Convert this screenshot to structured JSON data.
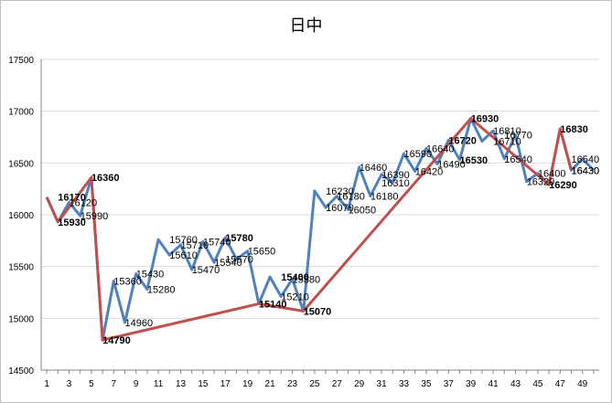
{
  "chart_data": {
    "type": "line",
    "title": "日中",
    "xlabel": "",
    "ylabel": "",
    "ylim": [
      14500,
      17500
    ],
    "yticks": [
      14500,
      15000,
      15500,
      16000,
      16500,
      17000,
      17500
    ],
    "xtick_labels": [
      "1",
      "3",
      "5",
      "7",
      "9",
      "11",
      "13",
      "15",
      "17",
      "19",
      "21",
      "23",
      "25",
      "27",
      "29",
      "31",
      "33",
      "35",
      "37",
      "39",
      "41",
      "43",
      "45",
      "47",
      "49"
    ],
    "grid": true,
    "legend": "none",
    "colors": {
      "primary": "#4f81bd",
      "swing": "#c0504d",
      "grid": "#d9d9d9"
    },
    "series": [
      {
        "values": [
          16170,
          15930,
          16120,
          15990,
          16360,
          14790,
          15360,
          14960,
          15430,
          15280,
          15760,
          15610,
          15710,
          15470,
          15740,
          15540,
          15780,
          15570,
          15650,
          15140,
          15400,
          15210,
          15380,
          15070,
          16230,
          16070,
          16180,
          16050,
          16460,
          16180,
          16390,
          16310,
          16590,
          16420,
          16640,
          16490,
          16720,
          16530,
          16930,
          16710,
          16810,
          16540,
          16770,
          16320,
          16400,
          16290,
          16830,
          16430,
          16540,
          16430
        ]
      },
      {
        "points": [
          [
            1,
            16170
          ],
          [
            2,
            15930
          ],
          [
            5,
            16360
          ],
          [
            6,
            14790
          ],
          [
            20,
            15140
          ],
          [
            24,
            15070
          ],
          [
            39,
            16930
          ],
          [
            46,
            16290
          ],
          [
            47,
            16830
          ],
          [
            48,
            16430
          ]
        ]
      }
    ],
    "annotations": [
      {
        "x": 2,
        "y": 16170,
        "text": "16170",
        "bold": true
      },
      {
        "x": 2,
        "y": 15930,
        "text": "15930",
        "bold": true
      },
      {
        "x": 3,
        "y": 16120,
        "text": "16120",
        "bold": false
      },
      {
        "x": 4,
        "y": 15990,
        "text": "15990",
        "bold": false
      },
      {
        "x": 5,
        "y": 16360,
        "text": "16360",
        "bold": true
      },
      {
        "x": 6,
        "y": 14790,
        "text": "14790",
        "bold": true
      },
      {
        "x": 7,
        "y": 15360,
        "text": "15360",
        "bold": false
      },
      {
        "x": 8,
        "y": 14960,
        "text": "14960",
        "bold": false
      },
      {
        "x": 9,
        "y": 15430,
        "text": "15430",
        "bold": false
      },
      {
        "x": 10,
        "y": 15280,
        "text": "15280",
        "bold": false
      },
      {
        "x": 12,
        "y": 15760,
        "text": "15760",
        "bold": false
      },
      {
        "x": 12,
        "y": 15610,
        "text": "15610",
        "bold": false
      },
      {
        "x": 13,
        "y": 15710,
        "text": "15710",
        "bold": false
      },
      {
        "x": 14,
        "y": 15470,
        "text": "15470",
        "bold": false
      },
      {
        "x": 15,
        "y": 15740,
        "text": "15740",
        "bold": false
      },
      {
        "x": 16,
        "y": 15540,
        "text": "15540",
        "bold": false
      },
      {
        "x": 17,
        "y": 15780,
        "text": "15780",
        "bold": true
      },
      {
        "x": 17,
        "y": 15570,
        "text": "15570",
        "bold": false
      },
      {
        "x": 19,
        "y": 15650,
        "text": "15650",
        "bold": false
      },
      {
        "x": 20,
        "y": 15140,
        "text": "15140",
        "bold": true
      },
      {
        "x": 22,
        "y": 15400,
        "text": "15400",
        "bold": true
      },
      {
        "x": 22,
        "y": 15210,
        "text": "15210",
        "bold": false
      },
      {
        "x": 23,
        "y": 15380,
        "text": "15380",
        "bold": false
      },
      {
        "x": 24,
        "y": 15070,
        "text": "15070",
        "bold": true
      },
      {
        "x": 26,
        "y": 16230,
        "text": "16230",
        "bold": false
      },
      {
        "x": 26,
        "y": 16070,
        "text": "16070",
        "bold": false
      },
      {
        "x": 27,
        "y": 16180,
        "text": "16180",
        "bold": false
      },
      {
        "x": 28,
        "y": 16050,
        "text": "16050",
        "bold": false
      },
      {
        "x": 29,
        "y": 16460,
        "text": "16460",
        "bold": false
      },
      {
        "x": 30,
        "y": 16180,
        "text": "16180",
        "bold": false
      },
      {
        "x": 31,
        "y": 16390,
        "text": "16390",
        "bold": false
      },
      {
        "x": 31,
        "y": 16310,
        "text": "16310",
        "bold": false
      },
      {
        "x": 33,
        "y": 16590,
        "text": "16590",
        "bold": false
      },
      {
        "x": 34,
        "y": 16420,
        "text": "16420",
        "bold": false
      },
      {
        "x": 35,
        "y": 16640,
        "text": "16640",
        "bold": false
      },
      {
        "x": 36,
        "y": 16490,
        "text": "16490",
        "bold": false
      },
      {
        "x": 37,
        "y": 16720,
        "text": "16720",
        "bold": true
      },
      {
        "x": 38,
        "y": 16530,
        "text": "16530",
        "bold": true
      },
      {
        "x": 39,
        "y": 16930,
        "text": "16930",
        "bold": true
      },
      {
        "x": 41,
        "y": 16710,
        "text": "16710",
        "bold": false
      },
      {
        "x": 41,
        "y": 16810,
        "text": "16810",
        "bold": false
      },
      {
        "x": 42,
        "y": 16540,
        "text": "16540",
        "bold": false
      },
      {
        "x": 42,
        "y": 16770,
        "text": "16770",
        "bold": false
      },
      {
        "x": 44,
        "y": 16320,
        "text": "16320",
        "bold": false
      },
      {
        "x": 45,
        "y": 16400,
        "text": "16400",
        "bold": false
      },
      {
        "x": 46,
        "y": 16290,
        "text": "16290",
        "bold": true
      },
      {
        "x": 47,
        "y": 16830,
        "text": "16830",
        "bold": true
      },
      {
        "x": 48,
        "y": 16430,
        "text": "16430",
        "bold": false
      },
      {
        "x": 48,
        "y": 16540,
        "text": "16540",
        "bold": false
      },
      {
        "x": 48,
        "y": 16430,
        "text": "16430",
        "bold": false
      }
    ]
  }
}
